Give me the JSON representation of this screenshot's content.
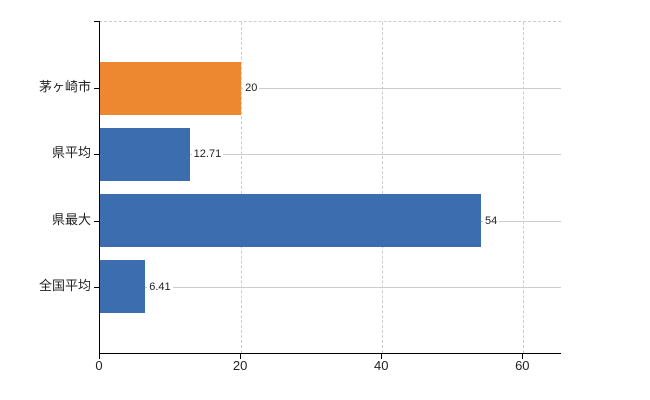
{
  "chart_data": {
    "type": "bar",
    "orientation": "horizontal",
    "title": "",
    "categories": [
      "茅ヶ崎市",
      "県平均",
      "県最大",
      "全国平均"
    ],
    "values": [
      20,
      12.71,
      54,
      6.41
    ],
    "value_labels": [
      "20",
      "12.71",
      "54",
      "6.41"
    ],
    "bar_colors": [
      "#ED8830",
      "#3C6DAF",
      "#3C6DAF",
      "#3C6DAF"
    ],
    "highlight_color": "#ED8830",
    "default_bar_color": "#3C6DAF",
    "x_tick_values": [
      0,
      20,
      40,
      60
    ],
    "x_tick_labels": [
      "0",
      "20",
      "40",
      "60"
    ],
    "xlim": [
      0,
      65.2
    ],
    "xlabel": "",
    "ylabel": "",
    "legend": "none",
    "grid": {
      "vertical_style": "dashed",
      "horizontal_style": "solid",
      "color": "#cccccc",
      "top_border_style": "dashed"
    },
    "axis_color": "#000000",
    "text_color": "#222222",
    "background_color": "#ffffff"
  }
}
